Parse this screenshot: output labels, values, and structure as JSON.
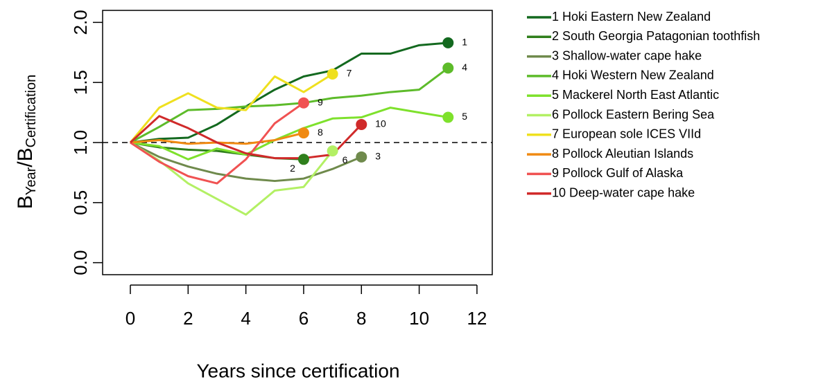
{
  "chart_data": {
    "type": "line",
    "xlabel": "Years since certification",
    "ylabel_parts": [
      "B",
      "Year",
      "/",
      "B",
      "Certification"
    ],
    "xlim": [
      -0.96,
      12.53
    ],
    "ylim": [
      -0.1,
      2.1
    ],
    "xticks": [
      0,
      2,
      4,
      6,
      8,
      10,
      12
    ],
    "yticks": [
      {
        "value": 0,
        "label": "0.0"
      },
      {
        "value": 0.5,
        "label": "0.5"
      },
      {
        "value": 1,
        "label": "1.0"
      },
      {
        "value": 1.5,
        "label": "1.5"
      },
      {
        "value": 2,
        "label": "2.0"
      }
    ],
    "reference_line": 1,
    "legend": "right",
    "series": [
      {
        "name": "1 Hoki Eastern New Zealand",
        "end_label": "1",
        "color": "#13691f",
        "x": [
          0,
          1,
          2,
          3,
          4,
          5,
          6,
          7,
          8,
          9,
          10,
          11
        ],
        "values": [
          1.0,
          1.03,
          1.04,
          1.15,
          1.3,
          1.44,
          1.55,
          1.6,
          1.74,
          1.74,
          1.81,
          1.83
        ]
      },
      {
        "name": "2 South Georgia Patagonian toothfish",
        "end_label": "2",
        "color": "#2f7f1c",
        "x": [
          0,
          1,
          2,
          3,
          4,
          5,
          6
        ],
        "values": [
          1.0,
          0.96,
          0.94,
          0.93,
          0.9,
          0.87,
          0.86
        ]
      },
      {
        "name": "3 Shallow-water cape hake",
        "end_label": "3",
        "color": "#6f8a4c",
        "x": [
          0,
          1,
          2,
          3,
          4,
          5,
          6,
          7,
          8
        ],
        "values": [
          1.0,
          0.88,
          0.8,
          0.74,
          0.7,
          0.68,
          0.7,
          0.78,
          0.88
        ]
      },
      {
        "name": "4 Hoki Western New Zealand",
        "end_label": "4",
        "color": "#5dbb2a",
        "x": [
          0,
          1,
          2,
          3,
          4,
          5,
          6,
          7,
          8,
          9,
          10,
          11
        ],
        "values": [
          1.0,
          1.13,
          1.27,
          1.28,
          1.3,
          1.31,
          1.33,
          1.37,
          1.39,
          1.42,
          1.44,
          1.62
        ]
      },
      {
        "name": "5 Mackerel North East Atlantic",
        "end_label": "5",
        "color": "#7ee12c",
        "x": [
          0,
          1,
          2,
          3,
          4,
          5,
          6,
          7,
          8,
          9,
          10,
          11
        ],
        "values": [
          1.0,
          0.97,
          0.86,
          0.95,
          0.9,
          1.02,
          1.12,
          1.2,
          1.21,
          1.29,
          1.25,
          1.21
        ]
      },
      {
        "name": "6 Pollock Eastern Bering Sea",
        "end_label": "6",
        "color": "#b3f064",
        "x": [
          0,
          1,
          2,
          3,
          4,
          5,
          6,
          7
        ],
        "values": [
          1.0,
          0.85,
          0.66,
          0.53,
          0.4,
          0.6,
          0.63,
          0.93
        ]
      },
      {
        "name": "7 European sole ICES VIId",
        "end_label": "7",
        "color": "#efe01f",
        "x": [
          0,
          1,
          2,
          3,
          4,
          5,
          6,
          7
        ],
        "values": [
          1.0,
          1.29,
          1.41,
          1.29,
          1.27,
          1.55,
          1.42,
          1.57
        ]
      },
      {
        "name": "8 Pollock Aleutian Islands",
        "end_label": "8",
        "color": "#f08a12",
        "x": [
          0,
          1,
          2,
          3,
          4,
          5,
          6
        ],
        "values": [
          1.0,
          1.02,
          0.99,
          1.0,
          0.99,
          1.02,
          1.08
        ]
      },
      {
        "name": "9 Pollock Gulf of Alaska",
        "end_label": "9",
        "color": "#f05252",
        "x": [
          0,
          1,
          2,
          3,
          4,
          5,
          6
        ],
        "values": [
          1.0,
          0.84,
          0.72,
          0.66,
          0.86,
          1.16,
          1.33
        ]
      },
      {
        "name": "10 Deep-water cape hake",
        "end_label": "10",
        "color": "#d02a2a",
        "x": [
          0,
          1,
          2,
          3,
          4,
          5,
          6,
          7,
          8
        ],
        "values": [
          1.0,
          1.22,
          1.12,
          1.0,
          0.91,
          0.87,
          0.87,
          0.9,
          1.15
        ]
      }
    ]
  }
}
